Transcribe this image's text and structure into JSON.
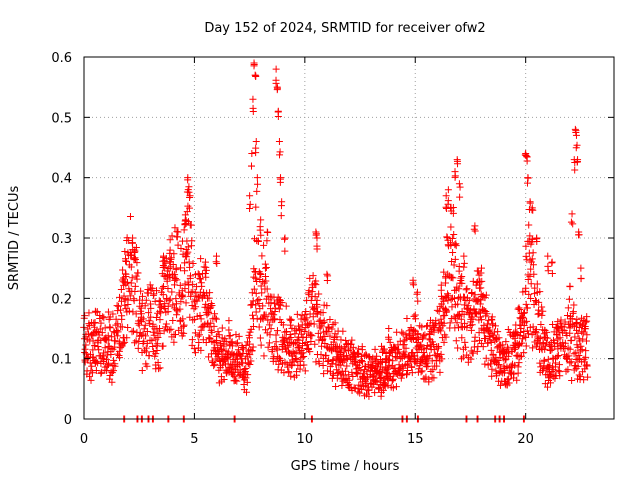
{
  "chart_data": {
    "type": "scatter",
    "title": "Day 152 of 2024, SRMTID for receiver ofw2",
    "xlabel": "GPS time / hours",
    "ylabel": "SRMTID / TECUs",
    "xlim": [
      0,
      24
    ],
    "ylim": [
      0,
      0.6
    ],
    "x_ticks": [
      "0",
      "5",
      "10",
      "15",
      "20"
    ],
    "x_tick_values": [
      0,
      5,
      10,
      15,
      20
    ],
    "y_ticks": [
      "0",
      "0.1",
      "0.2",
      "0.3",
      "0.4",
      "0.5",
      "0.6"
    ],
    "y_tick_values": [
      0,
      0.1,
      0.2,
      0.3,
      0.4,
      0.5,
      0.6
    ],
    "grid": true,
    "marker": "+",
    "color": "#ff0000",
    "zero_markers": [
      1.8,
      2.4,
      2.6,
      2.9,
      3.1,
      3.8,
      4.5,
      6.8,
      10.3,
      14.4,
      14.6,
      15.1,
      17.3,
      17.8,
      18.6,
      18.8,
      19.0,
      19.9
    ],
    "profile": [
      [
        0.0,
        0.12
      ],
      [
        0.5,
        0.13
      ],
      [
        1.0,
        0.12
      ],
      [
        1.4,
        0.12
      ],
      [
        1.8,
        0.19
      ],
      [
        2.1,
        0.25
      ],
      [
        2.4,
        0.2
      ],
      [
        2.7,
        0.13
      ],
      [
        3.0,
        0.16
      ],
      [
        3.4,
        0.15
      ],
      [
        3.7,
        0.21
      ],
      [
        4.0,
        0.23
      ],
      [
        4.4,
        0.22
      ],
      [
        4.7,
        0.26
      ],
      [
        5.0,
        0.18
      ],
      [
        5.4,
        0.19
      ],
      [
        5.8,
        0.14
      ],
      [
        6.2,
        0.1
      ],
      [
        6.6,
        0.11
      ],
      [
        7.0,
        0.09
      ],
      [
        7.3,
        0.08
      ],
      [
        7.6,
        0.15
      ],
      [
        7.8,
        0.27
      ],
      [
        8.1,
        0.2
      ],
      [
        8.5,
        0.16
      ],
      [
        8.8,
        0.15
      ],
      [
        9.2,
        0.13
      ],
      [
        9.6,
        0.11
      ],
      [
        10.0,
        0.14
      ],
      [
        10.4,
        0.18
      ],
      [
        10.8,
        0.14
      ],
      [
        11.2,
        0.12
      ],
      [
        11.6,
        0.1
      ],
      [
        12.0,
        0.09
      ],
      [
        12.5,
        0.08
      ],
      [
        13.0,
        0.07
      ],
      [
        13.5,
        0.08
      ],
      [
        14.0,
        0.09
      ],
      [
        14.5,
        0.11
      ],
      [
        15.0,
        0.12
      ],
      [
        15.5,
        0.11
      ],
      [
        15.9,
        0.12
      ],
      [
        16.3,
        0.17
      ],
      [
        16.6,
        0.27
      ],
      [
        17.0,
        0.18
      ],
      [
        17.4,
        0.14
      ],
      [
        17.8,
        0.18
      ],
      [
        18.2,
        0.15
      ],
      [
        18.6,
        0.11
      ],
      [
        19.0,
        0.09
      ],
      [
        19.4,
        0.1
      ],
      [
        19.8,
        0.15
      ],
      [
        20.1,
        0.24
      ],
      [
        20.5,
        0.18
      ],
      [
        20.9,
        0.1
      ],
      [
        21.3,
        0.11
      ],
      [
        21.7,
        0.12
      ],
      [
        22.1,
        0.13
      ],
      [
        22.4,
        0.12
      ],
      [
        22.8,
        0.12
      ]
    ],
    "spikes": [
      [
        0.5,
        0.16
      ],
      [
        1.9,
        0.24
      ],
      [
        2.2,
        0.3
      ],
      [
        2.3,
        0.28
      ],
      [
        3.6,
        0.27
      ],
      [
        3.9,
        0.28
      ],
      [
        4.0,
        0.24
      ],
      [
        4.6,
        0.33
      ],
      [
        4.7,
        0.4
      ],
      [
        4.75,
        0.385
      ],
      [
        4.8,
        0.37
      ],
      [
        5.5,
        0.26
      ],
      [
        6.0,
        0.27
      ],
      [
        7.5,
        0.37
      ],
      [
        7.6,
        0.44
      ],
      [
        7.65,
        0.53
      ],
      [
        7.7,
        0.59
      ],
      [
        7.75,
        0.57
      ],
      [
        7.8,
        0.46
      ],
      [
        7.85,
        0.4
      ],
      [
        8.0,
        0.33
      ],
      [
        8.3,
        0.31
      ],
      [
        8.7,
        0.58
      ],
      [
        8.75,
        0.55
      ],
      [
        8.8,
        0.51
      ],
      [
        8.85,
        0.46
      ],
      [
        8.9,
        0.4
      ],
      [
        8.95,
        0.36
      ],
      [
        9.1,
        0.3
      ],
      [
        10.5,
        0.31
      ],
      [
        10.55,
        0.3
      ],
      [
        11.0,
        0.24
      ],
      [
        12.6,
        0.12
      ],
      [
        13.8,
        0.15
      ],
      [
        14.9,
        0.23
      ],
      [
        15.1,
        0.21
      ],
      [
        16.4,
        0.37
      ],
      [
        16.5,
        0.38
      ],
      [
        16.6,
        0.35
      ],
      [
        16.8,
        0.41
      ],
      [
        16.9,
        0.43
      ],
      [
        17.0,
        0.39
      ],
      [
        17.2,
        0.27
      ],
      [
        17.7,
        0.32
      ],
      [
        18.0,
        0.25
      ],
      [
        20.0,
        0.44
      ],
      [
        20.05,
        0.435
      ],
      [
        20.1,
        0.4
      ],
      [
        20.2,
        0.36
      ],
      [
        20.3,
        0.35
      ],
      [
        20.5,
        0.3
      ],
      [
        21.0,
        0.27
      ],
      [
        21.2,
        0.26
      ],
      [
        22.0,
        0.22
      ],
      [
        22.1,
        0.34
      ],
      [
        22.2,
        0.43
      ],
      [
        22.25,
        0.48
      ],
      [
        22.3,
        0.47
      ],
      [
        22.35,
        0.43
      ],
      [
        22.4,
        0.31
      ],
      [
        22.5,
        0.25
      ]
    ],
    "seed": 152,
    "points_per_hour": 60
  }
}
